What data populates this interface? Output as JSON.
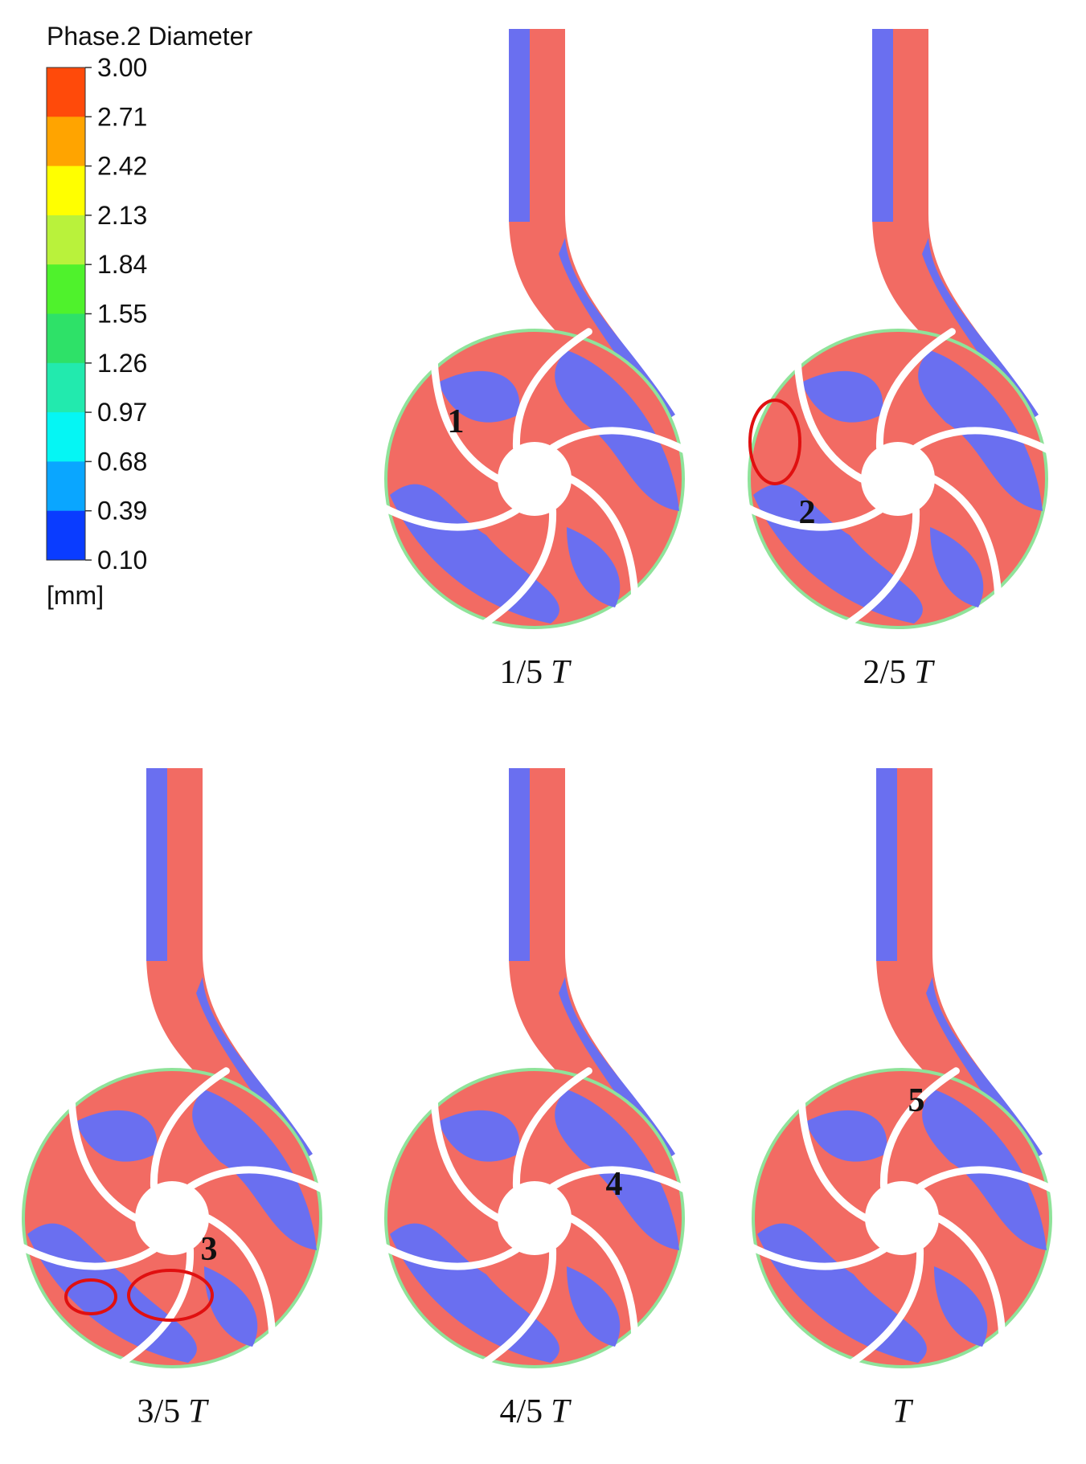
{
  "legend": {
    "title": "Phase.2 Diameter",
    "ticks": [
      "3.00",
      "2.71",
      "2.42",
      "2.13",
      "1.84",
      "1.55",
      "1.26",
      "0.97",
      "0.68",
      "0.39",
      "0.10"
    ],
    "colors": [
      "#ff4a0a",
      "#ffa400",
      "#ffff00",
      "#b9f23b",
      "#4ff22c",
      "#2ee168",
      "#22eaae",
      "#05f6f4",
      "#0aa6ff",
      "#0a3cff"
    ],
    "unit": "[mm]"
  },
  "panels": [
    {
      "time": "1/5",
      "symbol": "T",
      "marker": "1"
    },
    {
      "time": "2/5",
      "symbol": "T",
      "marker": "2"
    },
    {
      "time": "3/5",
      "symbol": "T",
      "marker": "3"
    },
    {
      "time": "4/5",
      "symbol": "T",
      "marker": "4"
    },
    {
      "symbol": "T",
      "marker": "5"
    }
  ]
}
